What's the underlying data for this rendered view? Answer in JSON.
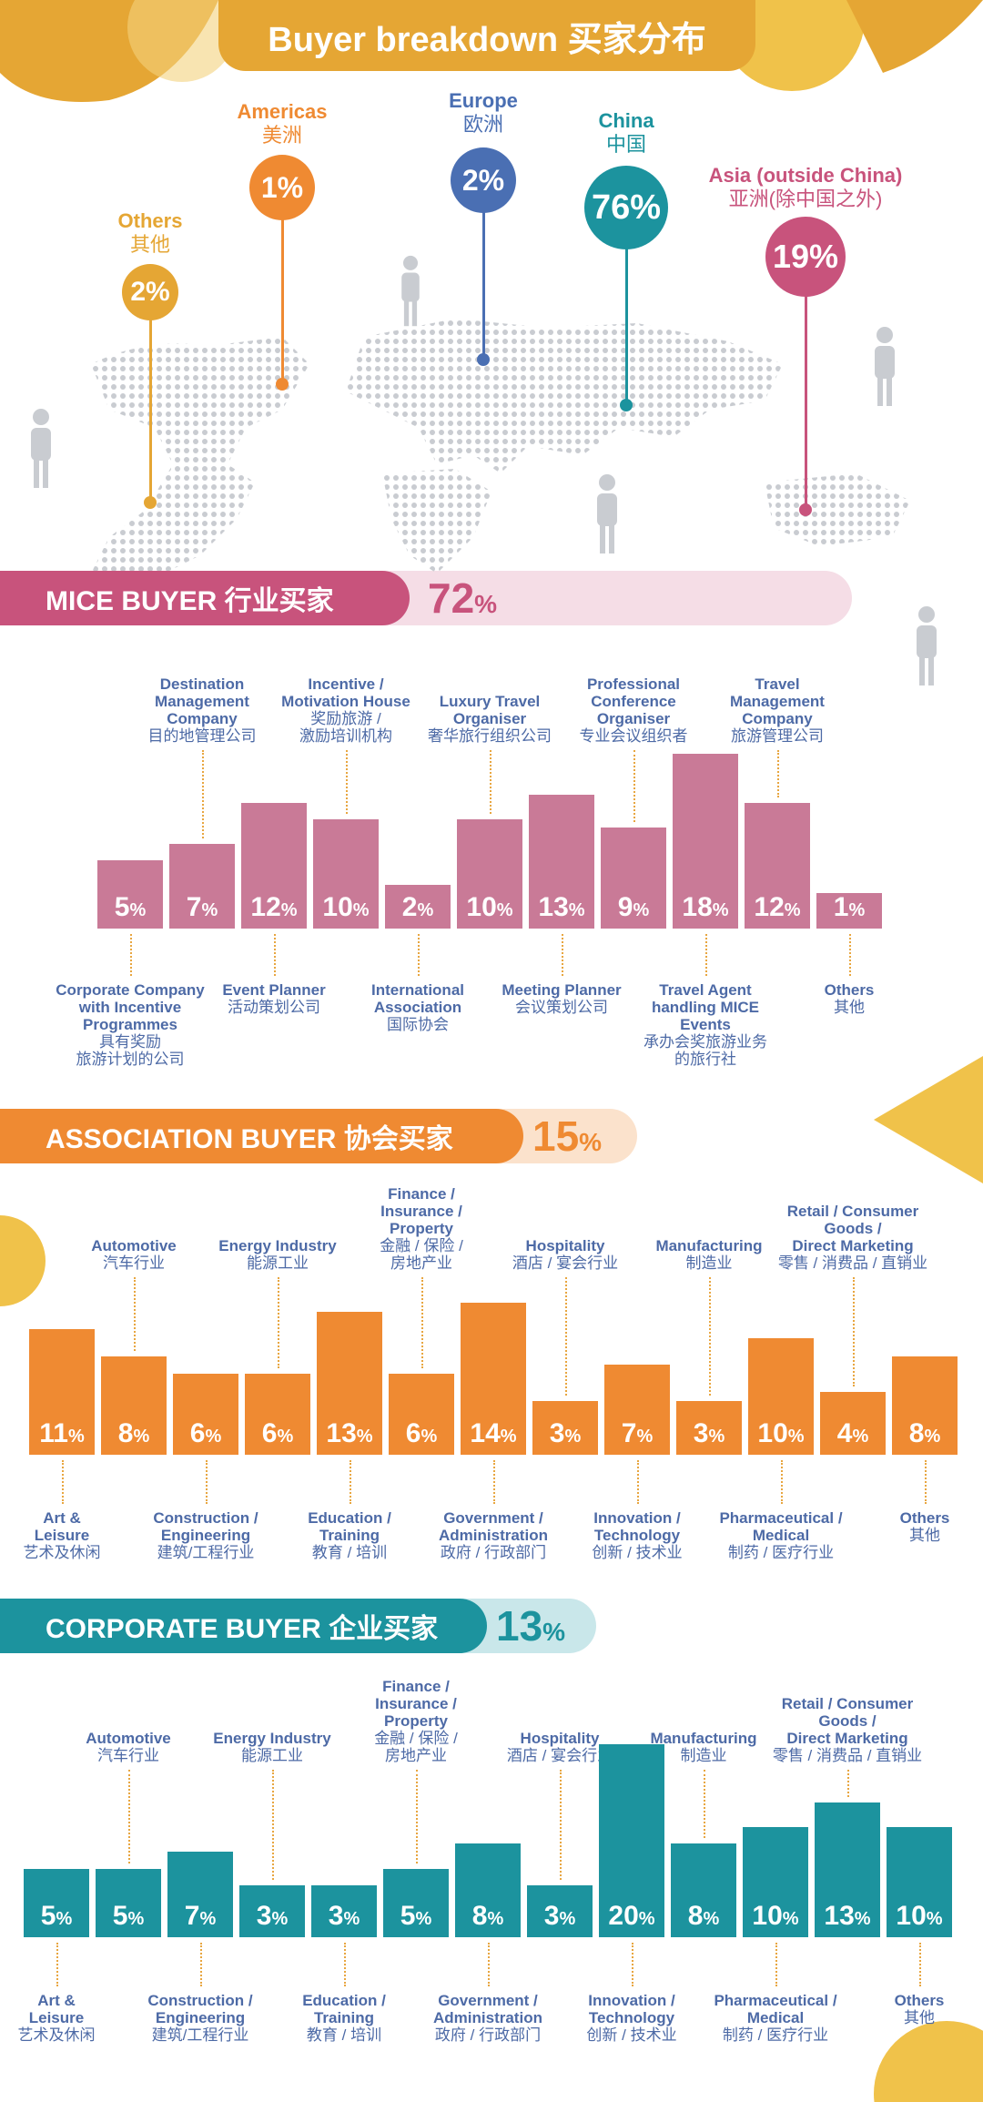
{
  "header": {
    "title": "Buyer breakdown 买家分布"
  },
  "colors": {
    "gold": "#e5a634",
    "orange": "#ef8a32",
    "blue": "#4a6fb3",
    "teal": "#1c939e",
    "pink": "#c8537c",
    "mice_bar": "#c97a97",
    "assoc_bar": "#ef8a32",
    "corp_bar": "#1c939e",
    "label_blue": "#4d6aa6"
  },
  "regions": [
    {
      "key": "others",
      "name_en": "Others",
      "name_zh": "其他",
      "pct": "2%",
      "color": "#e5a634"
    },
    {
      "key": "americas",
      "name_en": "Americas",
      "name_zh": "美洲",
      "pct": "1%",
      "color": "#ef8a32"
    },
    {
      "key": "europe",
      "name_en": "Europe",
      "name_zh": "欧洲",
      "pct": "2%",
      "color": "#4a6fb3"
    },
    {
      "key": "china",
      "name_en": "China",
      "name_zh": "中国",
      "pct": "76%",
      "color": "#1c939e"
    },
    {
      "key": "asia",
      "name_en": "Asia (outside China)",
      "name_zh": "亚洲(除中国之外)",
      "pct": "19%",
      "color": "#c8537c"
    }
  ],
  "sections": {
    "mice": {
      "title": "MICE BUYER 行业买家",
      "pct_num": "72",
      "pct_sign": "%"
    },
    "association": {
      "title": "ASSOCIATION BUYER 协会买家",
      "pct_num": "15",
      "pct_sign": "%"
    },
    "corporate": {
      "title": "CORPORATE BUYER 企业买家",
      "pct_num": "13",
      "pct_sign": "%"
    }
  },
  "chart_data": [
    {
      "type": "pie",
      "categories": [
        "Others 其他",
        "Americas 美洲",
        "Europe 欧洲",
        "China 中国",
        "Asia (outside China) 亚洲(除中国之外)"
      ],
      "values": [
        2,
        1,
        2,
        76,
        19
      ]
    },
    {
      "type": "bar",
      "title": "MICE BUYER 行业买家 72%",
      "categories": [
        [
          "Corporate Company",
          "with Incentive",
          "Programmes",
          "具有奖励",
          "旅游计划的公司"
        ],
        [
          "Destination",
          "Management",
          "Company",
          "目的地管理公司"
        ],
        [
          "Event Planner",
          "活动策划公司"
        ],
        [
          "Incentive /",
          "Motivation House",
          "奖励旅游 /",
          "激励培训机构"
        ],
        [
          "International",
          "Association",
          "国际协会"
        ],
        [
          "Luxury Travel",
          "Organiser",
          "奢华旅行组织公司"
        ],
        [
          "Meeting Planner",
          "会议策划公司"
        ],
        [
          "Professional",
          "Conference",
          "Organiser",
          "专业会议组织者"
        ],
        [
          "Travel Agent",
          "handling MICE",
          "Events",
          "承办会奖旅游业务",
          "的旅行社"
        ],
        [
          "Travel",
          "Management",
          "Company",
          "旅游管理公司"
        ],
        [
          "Others",
          "其他"
        ]
      ],
      "values": [
        5,
        7,
        12,
        10,
        2,
        10,
        13,
        9,
        18,
        12,
        1
      ]
    },
    {
      "type": "bar",
      "title": "ASSOCIATION BUYER 协会买家 15%",
      "categories": [
        [
          "Art &",
          "Leisure",
          "艺术及休闲"
        ],
        [
          "Automotive",
          "汽车行业"
        ],
        [
          "Construction /",
          "Engineering",
          "建筑/工程行业"
        ],
        [
          "Energy Industry",
          "能源工业"
        ],
        [
          "Education /",
          "Training",
          "教育 / 培训"
        ],
        [
          "Finance /",
          "Insurance /",
          "Property",
          "金融 / 保险 /",
          "房地产业"
        ],
        [
          "Government /",
          "Administration",
          "政府 / 行政部门"
        ],
        [
          "Hospitality",
          "酒店 / 宴会行业"
        ],
        [
          "Innovation /",
          "Technology",
          "创新 / 技术业"
        ],
        [
          "Manufacturing",
          "制造业"
        ],
        [
          "Pharmaceutical /",
          "Medical",
          "制药 / 医疗行业"
        ],
        [
          "Retail / Consumer",
          "Goods /",
          "Direct Marketing",
          "零售 / 消费品 / 直销业"
        ],
        [
          "Others",
          "其他"
        ]
      ],
      "values": [
        11,
        8,
        6,
        6,
        13,
        6,
        14,
        3,
        7,
        3,
        10,
        4,
        8
      ]
    },
    {
      "type": "bar",
      "title": "CORPORATE BUYER 企业买家 13%",
      "categories": [
        [
          "Art &",
          "Leisure",
          "艺术及休闲"
        ],
        [
          "Automotive",
          "汽车行业"
        ],
        [
          "Construction /",
          "Engineering",
          "建筑/工程行业"
        ],
        [
          "Energy Industry",
          "能源工业"
        ],
        [
          "Education /",
          "Training",
          "教育 / 培训"
        ],
        [
          "Finance /",
          "Insurance /",
          "Property",
          "金融 / 保险 /",
          "房地产业"
        ],
        [
          "Government /",
          "Administration",
          "政府 / 行政部门"
        ],
        [
          "Hospitality",
          "酒店 / 宴会行业"
        ],
        [
          "Innovation /",
          "Technology",
          "创新 / 技术业"
        ],
        [
          "Manufacturing",
          "制造业"
        ],
        [
          "Pharmaceutical /",
          "Medical",
          "制药 / 医疗行业"
        ],
        [
          "Retail / Consumer",
          "Goods /",
          "Direct Marketing",
          "零售 / 消费品 / 直销业"
        ],
        [
          "Others",
          "其他"
        ]
      ],
      "values": [
        5,
        5,
        7,
        3,
        3,
        5,
        8,
        3,
        20,
        8,
        10,
        13,
        10
      ]
    }
  ]
}
